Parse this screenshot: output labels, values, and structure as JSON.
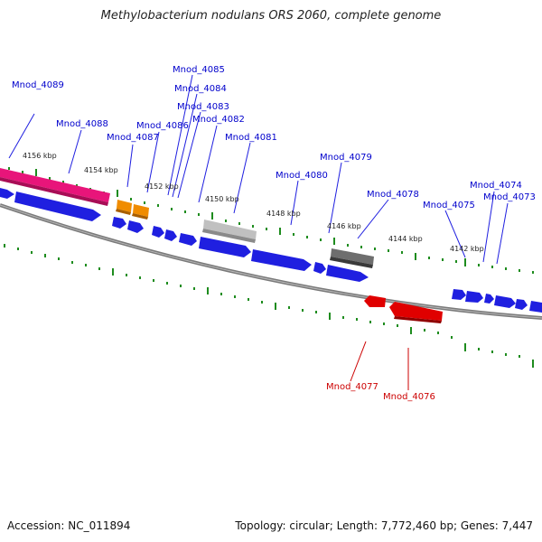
{
  "title": "Methylobacterium nodulans ORS 2060, complete genome",
  "footer": {
    "accession": "Accession: NC_011894",
    "summary": "Topology: circular; Length: 7,772,460 bp; Genes: 7,447"
  },
  "colors": {
    "forward_gene": "#1f1fe0",
    "reverse_gene": "#e00000",
    "label_forward": "#0000cc",
    "label_reverse": "#cc0000",
    "pink_feature": "#e8157a",
    "orange_feature": "#f08c00",
    "light_gray_feature": "#c0c0c0",
    "dark_gray_feature": "#6e6e6e",
    "ticks": "#1e8c1e",
    "backbone": "#7a7a7a"
  },
  "scale_labels": [
    "4156 kbp",
    "4154 kbp",
    "4152 kbp",
    "4150 kbp",
    "4148 kbp",
    "4146 kbp",
    "4144 kbp",
    "4142 kbp"
  ],
  "forward_labels": [
    "Mnod_4089",
    "Mnod_4088",
    "Mnod_4087",
    "Mnod_4086",
    "Mnod_4085",
    "Mnod_4084",
    "Mnod_4083",
    "Mnod_4082",
    "Mnod_4081",
    "Mnod_4080",
    "Mnod_4079",
    "Mnod_4078",
    "Mnod_4075",
    "Mnod_4074",
    "Mnod_4073"
  ],
  "reverse_labels": [
    "Mnod_4077",
    "Mnod_4076"
  ]
}
